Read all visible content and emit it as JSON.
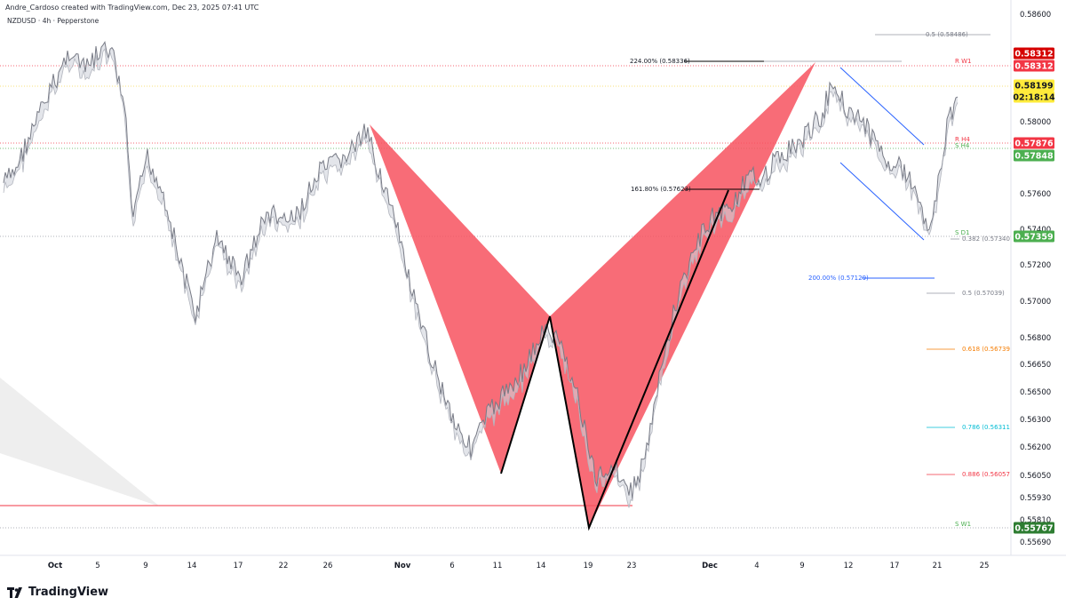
{
  "header": {
    "credit": "Andre_Cardoso created with TradingView.com, Dec 23, 2025 07:41 UTC",
    "symbol": "NZDUSD · 4h · Pepperstone"
  },
  "footer": {
    "brand": "TradingView"
  },
  "colors": {
    "pattern_fill": "#f7525f",
    "price_line": "#787b86",
    "band_fill": "#d1d4dc",
    "black": "#000000",
    "blue": "#2962ff",
    "green_tag": "#4caf50",
    "dark_green_tag": "#2e7d32",
    "red_tag": "#f23645",
    "dark_red_tag": "#d50000",
    "yellow_tag": "#ffeb3b",
    "orange": "#f57c00",
    "cyan": "#00bcd4"
  },
  "chart_data": {
    "type": "line",
    "symbol": "NZDUSD",
    "timeframe": "4h",
    "ylim": [
      0.5563,
      0.5869
    ],
    "y_ticks": [
      "0.58600",
      "0.58400",
      "0.58000",
      "0.57800",
      "0.57600",
      "0.57400",
      "0.57200",
      "0.57000",
      "0.56800",
      "0.56650",
      "0.56500",
      "0.56300",
      "0.56200",
      "0.56050",
      "0.55930",
      "0.55810",
      "0.55690"
    ],
    "x_ticks": [
      {
        "label": "Oct",
        "bold": true
      },
      {
        "label": "5"
      },
      {
        "label": "9"
      },
      {
        "label": "14"
      },
      {
        "label": "17"
      },
      {
        "label": "22"
      },
      {
        "label": "26"
      },
      {
        "label": "Nov",
        "bold": true
      },
      {
        "label": "6"
      },
      {
        "label": "11"
      },
      {
        "label": "14"
      },
      {
        "label": "19"
      },
      {
        "label": "23"
      },
      {
        "label": "Dec",
        "bold": true
      },
      {
        "label": "4"
      },
      {
        "label": "9"
      },
      {
        "label": "12"
      },
      {
        "label": "17"
      },
      {
        "label": "21"
      },
      {
        "label": "25"
      }
    ],
    "price_tags": [
      {
        "value": "0.58312",
        "color": "dark_red_tag",
        "text_color": "#ffffff"
      },
      {
        "value": "0.58312",
        "color": "red_tag",
        "text_color": "#ffffff"
      },
      {
        "value": "0.58199",
        "color": "yellow_tag",
        "text_color": "#131722"
      },
      {
        "value": "02:18:14",
        "color": "yellow_tag",
        "text_color": "#131722"
      },
      {
        "value": "0.57876",
        "color": "red_tag",
        "text_color": "#ffffff"
      },
      {
        "value": "0.57848",
        "color": "green_tag",
        "text_color": "#ffffff"
      },
      {
        "value": "0.57359",
        "color": "green_tag",
        "text_color": "#ffffff"
      },
      {
        "value": "0.55767",
        "color": "dark_green_tag",
        "text_color": "#ffffff"
      }
    ],
    "level_labels": [
      {
        "text": "R W1",
        "color": "red_tag"
      },
      {
        "text": "R H4",
        "color": "red_tag"
      },
      {
        "text": "S H4",
        "color": "green_tag"
      },
      {
        "text": "S D1",
        "color": "green_tag"
      },
      {
        "text": "S W1",
        "color": "green_tag"
      }
    ],
    "fib_levels": [
      {
        "label": "0.5 (0.58486)",
        "price": 0.58486,
        "color": "price_line"
      },
      {
        "label": "224.00% (0.58336)",
        "price": 0.58336,
        "color": "black"
      },
      {
        "label": "161.80% (0.57623)",
        "price": 0.57623,
        "color": "black"
      },
      {
        "label": "0.382 (0.57340)",
        "price": 0.5734,
        "color": "price_line"
      },
      {
        "label": "200.00% (0.57129)",
        "price": 0.57129,
        "color": "blue"
      },
      {
        "label": "0.5 (0.57039)",
        "price": 0.57039,
        "color": "price_line"
      },
      {
        "label": "0.618 (0.56739)",
        "price": 0.56739,
        "color": "orange"
      },
      {
        "label": "0.786 (0.56311)",
        "price": 0.56311,
        "color": "cyan"
      },
      {
        "label": "0.886 (0.56057)",
        "price": 0.56057,
        "color": "red_tag"
      }
    ]
  }
}
